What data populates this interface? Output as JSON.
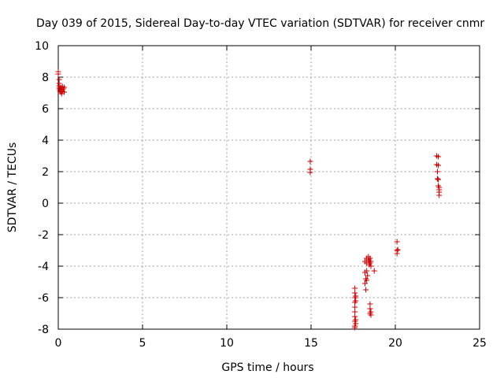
{
  "chart_data": {
    "type": "scatter",
    "title": "Day 039 of 2015, Sidereal Day-to-day VTEC variation (SDTVAR) for receiver cnmr",
    "xlabel": "GPS time / hours",
    "ylabel": "SDTVAR / TECUs",
    "xlim": [
      0,
      25
    ],
    "ylim": [
      -8,
      10
    ],
    "xticks": [
      0,
      5,
      10,
      15,
      20,
      25
    ],
    "yticks": [
      -8,
      -6,
      -4,
      -2,
      0,
      2,
      4,
      6,
      8,
      10
    ],
    "grid": true,
    "marker": "+",
    "color": "#cc0000",
    "series": [
      {
        "points": [
          [
            0.0,
            8.35
          ],
          [
            0.0,
            8.2
          ],
          [
            0.05,
            7.85
          ],
          [
            0.05,
            7.6
          ],
          [
            0.05,
            7.45
          ],
          [
            0.05,
            7.3
          ],
          [
            0.1,
            7.2
          ],
          [
            0.1,
            7.1
          ],
          [
            0.15,
            7.35
          ],
          [
            0.15,
            7.05
          ],
          [
            0.2,
            7.25
          ],
          [
            0.2,
            6.95
          ],
          [
            0.25,
            7.4
          ],
          [
            0.25,
            7.1
          ],
          [
            0.3,
            7.25
          ],
          [
            0.35,
            7.05
          ],
          [
            0.35,
            7.35
          ],
          [
            14.95,
            2.65
          ],
          [
            14.95,
            2.15
          ],
          [
            14.95,
            1.95
          ],
          [
            17.6,
            -5.4
          ],
          [
            17.6,
            -5.7
          ],
          [
            17.6,
            -6.0
          ],
          [
            17.6,
            -6.3
          ],
          [
            17.6,
            -6.6
          ],
          [
            17.6,
            -6.9
          ],
          [
            17.6,
            -7.2
          ],
          [
            17.6,
            -7.5
          ],
          [
            17.6,
            -7.8
          ],
          [
            17.6,
            -7.9
          ],
          [
            17.65,
            -5.9
          ],
          [
            17.65,
            -6.2
          ],
          [
            17.65,
            -7.4
          ],
          [
            17.65,
            -7.65
          ],
          [
            18.2,
            -3.7
          ],
          [
            18.2,
            -4.4
          ],
          [
            18.2,
            -5.1
          ],
          [
            18.25,
            -4.8
          ],
          [
            18.25,
            -5.5
          ],
          [
            18.3,
            -3.5
          ],
          [
            18.3,
            -3.8
          ],
          [
            18.3,
            -4.3
          ],
          [
            18.3,
            -4.9
          ],
          [
            18.35,
            -4.6
          ],
          [
            18.4,
            -3.4
          ],
          [
            18.4,
            -3.6
          ],
          [
            18.45,
            -3.7
          ],
          [
            18.45,
            -3.9
          ],
          [
            18.5,
            -3.5
          ],
          [
            18.5,
            -3.8
          ],
          [
            18.55,
            -4.0
          ],
          [
            18.55,
            -3.7
          ],
          [
            18.5,
            -6.4
          ],
          [
            18.5,
            -6.7
          ],
          [
            18.5,
            -7.0
          ],
          [
            18.55,
            -7.1
          ],
          [
            18.55,
            -6.9
          ],
          [
            18.75,
            -4.3
          ],
          [
            20.1,
            -2.45
          ],
          [
            20.1,
            -3.0
          ],
          [
            20.1,
            -3.2
          ],
          [
            20.15,
            -2.95
          ],
          [
            22.45,
            3.0
          ],
          [
            22.45,
            2.45
          ],
          [
            22.5,
            2.0
          ],
          [
            22.5,
            1.55
          ],
          [
            22.55,
            2.95
          ],
          [
            22.55,
            2.4
          ],
          [
            22.55,
            1.5
          ],
          [
            22.55,
            1.1
          ],
          [
            22.6,
            0.85
          ],
          [
            22.6,
            0.7
          ],
          [
            22.6,
            0.5
          ],
          [
            22.6,
            1.0
          ]
        ]
      }
    ]
  }
}
